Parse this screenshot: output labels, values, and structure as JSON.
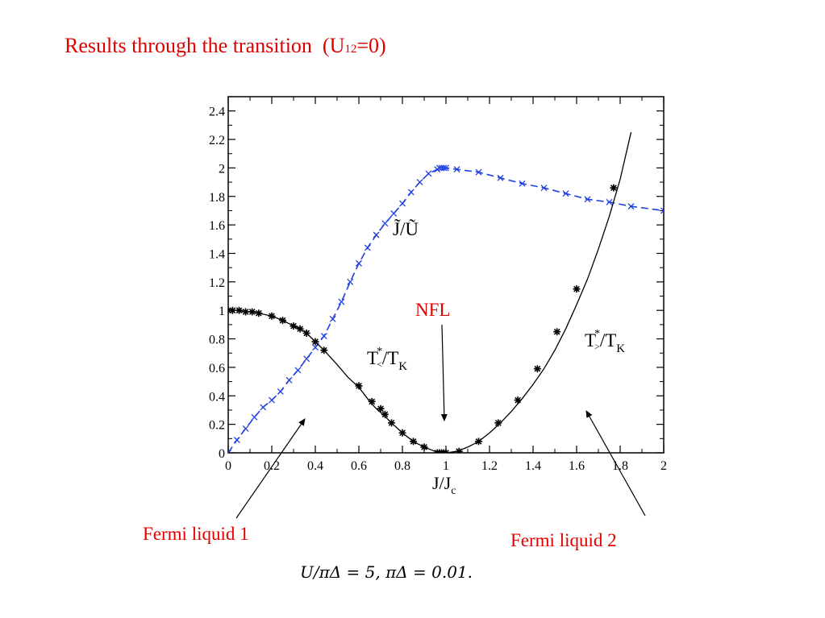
{
  "slide": {
    "title": "Results through the transition",
    "title_param_open": "(U",
    "title_param_sub": "12",
    "title_param_close": "=0)",
    "annotations": {
      "nfl": "NFL",
      "fermi_liquid_1": "Fermi liquid 1",
      "fermi_liquid_2": "Fermi liquid 2",
      "params": "U/πΔ = 5,  πΔ = 0.01."
    },
    "colors": {
      "title": "#e00000",
      "blue_series": "#1f3fe0",
      "black_series": "#000000",
      "labels": "#e00000"
    }
  },
  "chart_data": {
    "type": "line",
    "xlabel": "J/J",
    "xlabel_sub": "c",
    "xlim": [
      0,
      2
    ],
    "ylim": [
      0,
      2.5
    ],
    "x_ticks": [
      0,
      0.2,
      0.4,
      0.6,
      0.8,
      1,
      1.2,
      1.4,
      1.6,
      1.8,
      2
    ],
    "x_tick_labels": [
      "0",
      "0.2",
      "0.4",
      "0.6",
      "0.8",
      "1",
      "1.2",
      "1.4",
      "1.6",
      "1.8",
      "2"
    ],
    "y_ticks": [
      0,
      0.2,
      0.4,
      0.6,
      0.8,
      1,
      1.2,
      1.4,
      1.6,
      1.8,
      2,
      2.2,
      2.4
    ],
    "y_tick_labels": [
      "0",
      "0.2",
      "0.4",
      "0.6",
      "0.8",
      "1",
      "1.2",
      "1.4",
      "1.6",
      "1.8",
      "2",
      "2.2",
      "2.4"
    ],
    "grid": false,
    "series": [
      {
        "name": "J̃/Ũ",
        "style": "dashed",
        "marker": "x",
        "color": "#1f3fe0",
        "x": [
          0,
          0.04,
          0.08,
          0.12,
          0.16,
          0.2,
          0.24,
          0.28,
          0.32,
          0.36,
          0.4,
          0.44,
          0.48,
          0.52,
          0.56,
          0.6,
          0.64,
          0.68,
          0.72,
          0.76,
          0.8,
          0.84,
          0.88,
          0.92,
          0.96,
          0.97,
          0.98,
          0.99,
          1.0,
          1.05,
          1.15,
          1.25,
          1.35,
          1.45,
          1.55,
          1.65,
          1.75,
          1.85,
          2.0
        ],
        "y": [
          0,
          0.09,
          0.17,
          0.25,
          0.32,
          0.37,
          0.43,
          0.51,
          0.58,
          0.66,
          0.74,
          0.82,
          0.94,
          1.06,
          1.2,
          1.33,
          1.44,
          1.53,
          1.61,
          1.68,
          1.75,
          1.83,
          1.9,
          1.96,
          1.99,
          2.0,
          2.0,
          2.0,
          2.0,
          1.99,
          1.97,
          1.93,
          1.89,
          1.86,
          1.82,
          1.78,
          1.76,
          1.73,
          1.7
        ]
      },
      {
        "name": "T*</TK",
        "style": "solid",
        "marker": "*",
        "color": "#000000",
        "x": [
          0,
          0.02,
          0.05,
          0.08,
          0.11,
          0.14,
          0.17,
          0.2,
          0.25,
          0.3,
          0.33,
          0.36,
          0.4,
          0.44,
          0.5,
          0.55,
          0.6,
          0.65,
          0.68,
          0.71,
          0.75,
          0.8,
          0.85,
          0.9,
          0.95,
          0.96,
          0.97,
          0.98,
          0.99,
          1.0,
          1.05,
          1.1,
          1.15,
          1.2,
          1.25,
          1.3,
          1.35,
          1.4,
          1.45,
          1.5,
          1.55,
          1.6,
          1.65,
          1.7,
          1.75,
          1.8,
          1.85
        ],
        "y": [
          1.0,
          1.0,
          1.0,
          0.99,
          0.99,
          0.98,
          0.97,
          0.96,
          0.93,
          0.89,
          0.87,
          0.84,
          0.78,
          0.72,
          0.62,
          0.53,
          0.46,
          0.36,
          0.31,
          0.27,
          0.21,
          0.14,
          0.08,
          0.04,
          0.01,
          0.0,
          0.0,
          0.0,
          0.0,
          0.0,
          0.01,
          0.04,
          0.08,
          0.14,
          0.21,
          0.29,
          0.38,
          0.48,
          0.59,
          0.72,
          0.87,
          1.04,
          1.22,
          1.43,
          1.66,
          1.92,
          2.25
        ],
        "markers_x": [
          0,
          0.02,
          0.05,
          0.08,
          0.11,
          0.14,
          0.2,
          0.25,
          0.3,
          0.33,
          0.36,
          0.4,
          0.44,
          0.6,
          0.66,
          0.7,
          0.72,
          0.75,
          0.8,
          0.85,
          0.9,
          0.96,
          0.97,
          0.98,
          0.99,
          1.0,
          1.06,
          1.15,
          1.24,
          1.33,
          1.42,
          1.51,
          1.6,
          1.77
        ],
        "markers_y": [
          1.0,
          1.0,
          1.0,
          0.99,
          0.99,
          0.98,
          0.96,
          0.93,
          0.89,
          0.87,
          0.84,
          0.78,
          0.72,
          0.47,
          0.36,
          0.31,
          0.27,
          0.21,
          0.14,
          0.08,
          0.04,
          0.0,
          0.0,
          0.0,
          0.0,
          0.0,
          0.01,
          0.08,
          0.21,
          0.37,
          0.59,
          0.85,
          1.15,
          1.86
        ]
      }
    ],
    "curve_labels": {
      "blue": "J̃/Ũ",
      "black_left_main": "T",
      "black_left_sup": "*",
      "black_left_sub": "<",
      "black_left_tail": "/T",
      "black_left_tail_sub": "K",
      "black_right_main": "T",
      "black_right_sup": "*",
      "black_right_sub": ">",
      "black_right_tail": "/T",
      "black_right_tail_sub": "K"
    }
  }
}
